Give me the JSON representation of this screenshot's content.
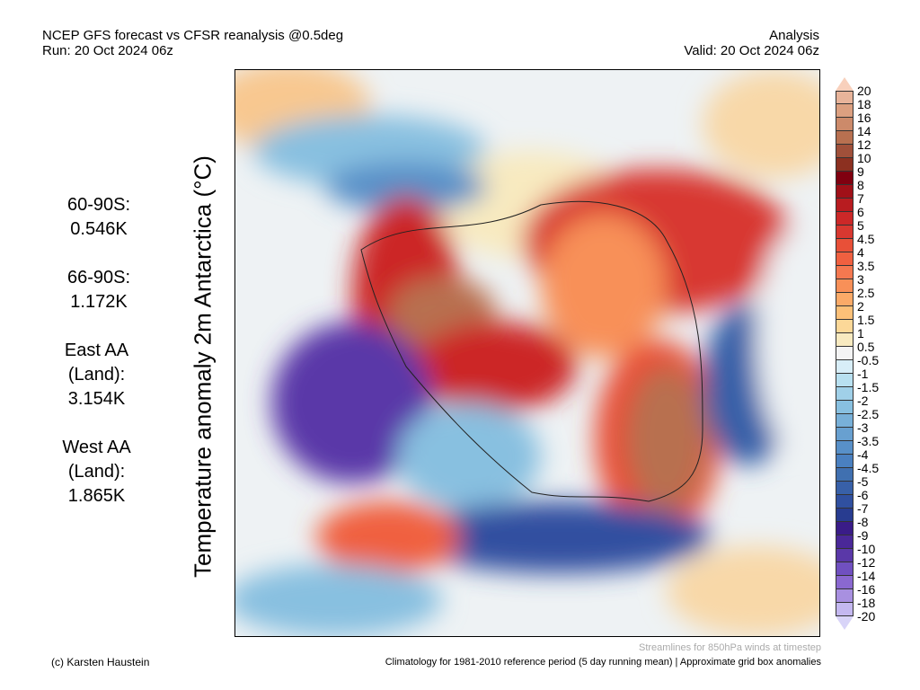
{
  "header": {
    "title": "NCEP GFS forecast vs CFSR reanalysis @0.5deg",
    "run": "Run: 20 Oct 2024 06z",
    "type": "Analysis",
    "valid": "Valid: 20 Oct 2024 06z"
  },
  "ylabel": "Temperature anomaly 2m Antarctica (°C)",
  "stats": [
    {
      "label": "60-90S:",
      "value": "0.546K"
    },
    {
      "label": "66-90S:",
      "value": "1.172K"
    },
    {
      "label": "East AA (Land):",
      "value": "3.154K"
    },
    {
      "label": "West AA (Land):",
      "value": "1.865K"
    }
  ],
  "colorbar": {
    "labels": [
      "20",
      "18",
      "16",
      "14",
      "12",
      "10",
      "9",
      "8",
      "7",
      "6",
      "5",
      "4.5",
      "4",
      "3.5",
      "3",
      "2.5",
      "2",
      "1.5",
      "1",
      "0.5",
      "-0.5",
      "-1",
      "-1.5",
      "-2",
      "-2.5",
      "-3",
      "-3.5",
      "-4",
      "-4.5",
      "-5",
      "-6",
      "-7",
      "-8",
      "-9",
      "-10",
      "-12",
      "-14",
      "-16",
      "-18",
      "-20"
    ],
    "colors": [
      "#e8b49a",
      "#dca080",
      "#cc8a6a",
      "#b87050",
      "#a0503a",
      "#8c3020",
      "#800010",
      "#a01018",
      "#b81c20",
      "#cc2828",
      "#d83830",
      "#e85038",
      "#f06040",
      "#f47850",
      "#f89058",
      "#fbaa68",
      "#fcc078",
      "#fcd898",
      "#f8eac0",
      "#f4f4f4",
      "#d8eef8",
      "#b8e0f0",
      "#a0d0e8",
      "#88c0e0",
      "#78b0d8",
      "#68a0d0",
      "#5890c8",
      "#4a80c0",
      "#4070b0",
      "#3860a8",
      "#3050a0",
      "#283c90",
      "#3a1c88",
      "#4a2898",
      "#5a38a8",
      "#7050c0",
      "#8a68d0",
      "#a890e0",
      "#c4b8f0"
    ],
    "top_arrow": "#f8d0bc",
    "bottom_arrow": "#d8d4f8"
  },
  "footer": {
    "credit": "(c) Karsten Haustein",
    "streamlines": "Streamlines for 850hPa winds at timestep",
    "climatology": "Climatology for 1981-2010 reference period (5 day running mean) | Approximate grid box anomalies"
  }
}
